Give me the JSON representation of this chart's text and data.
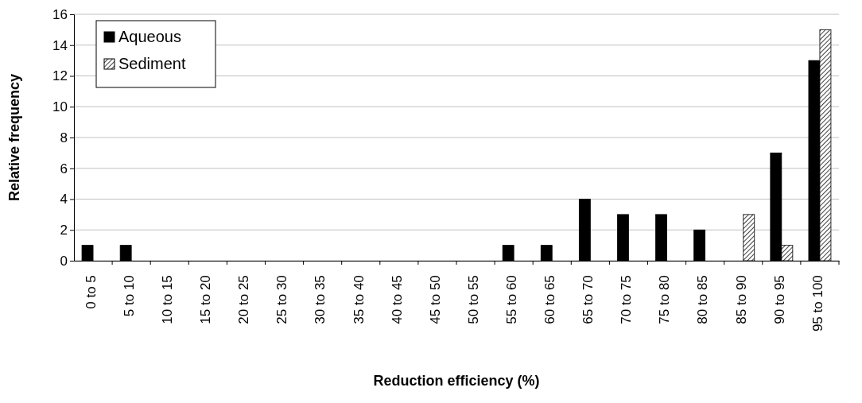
{
  "chart_data": {
    "type": "bar",
    "xlabel": "Reduction efficiency (%)",
    "ylabel": "Relative frequency",
    "categories": [
      "0 to 5",
      "5 to 10",
      "10 to 15",
      "15 to 20",
      "20 to 25",
      "25 to 30",
      "30 to 35",
      "35 to 40",
      "40 to 45",
      "45 to 50",
      "50 to 55",
      "55 to 60",
      "60 to 65",
      "65 to 70",
      "70 to 75",
      "75 to 80",
      "80 to 85",
      "85 to 90",
      "90 to 95",
      "95 to 100"
    ],
    "series": [
      {
        "name": "Aqueous",
        "color": "#000000",
        "values": [
          1,
          1,
          0,
          0,
          0,
          0,
          0,
          0,
          0,
          0,
          0,
          1,
          1,
          4,
          3,
          3,
          2,
          0,
          7,
          13
        ]
      },
      {
        "name": "Sediment",
        "color": "#000000",
        "values": [
          0,
          0,
          0,
          0,
          0,
          0,
          0,
          0,
          0,
          0,
          0,
          0,
          0,
          0,
          0,
          0,
          0,
          3,
          1,
          15
        ]
      }
    ],
    "ylim": [
      0,
      16
    ],
    "yticks": [
      0,
      2,
      4,
      6,
      8,
      10,
      12,
      14,
      16
    ],
    "grid": "y",
    "legend": "top left"
  }
}
